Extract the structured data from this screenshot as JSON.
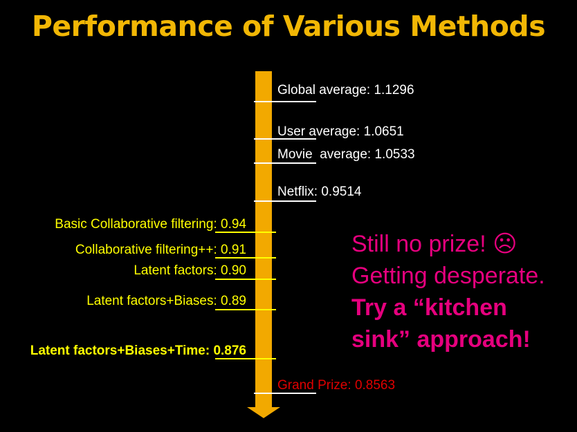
{
  "title": "Performance of Various Methods",
  "colors": {
    "title": "#f2b705",
    "arrow": "#f2a900",
    "right_labels": "#ffffff",
    "left_labels": "#ffff00",
    "grand_prize": "#e00000",
    "message": "#e6007e"
  },
  "right_markers": [
    {
      "label": "Global average:",
      "value": "1.1296"
    },
    {
      "label": "User average:",
      "value": "1.0651"
    },
    {
      "label": "Movie  average:",
      "value": "1.0533"
    },
    {
      "label": "Netflix:",
      "value": "0.9514"
    },
    {
      "label": "Grand Prize:",
      "value": "0.8563"
    }
  ],
  "left_markers": [
    {
      "label": "Basic Collaborative filtering:",
      "value": "0.94"
    },
    {
      "label": "Collaborative filtering++:",
      "value": "0.91"
    },
    {
      "label": "Latent factors:",
      "value": "0.90"
    },
    {
      "label": "Latent factors+Biases:",
      "value": "0.89"
    },
    {
      "label": "Latent factors+Biases+Time:",
      "value": "0.876"
    }
  ],
  "message": {
    "line1": "Still no prize! ☹",
    "line2": "Getting desperate.",
    "line3": "Try a “kitchen",
    "line4": "sink” approach!"
  }
}
